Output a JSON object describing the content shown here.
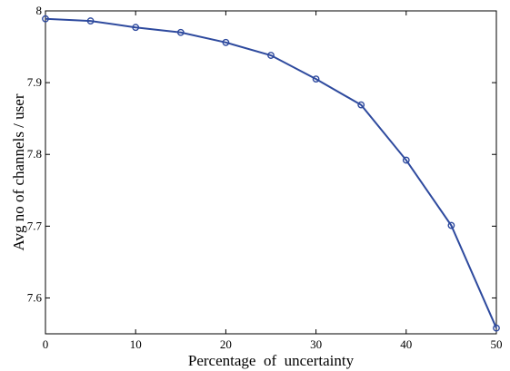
{
  "chart_data": {
    "type": "line",
    "title": "",
    "xlabel": "Percentage  of  uncertainty",
    "ylabel": "Avg no of channels / user",
    "xlim": [
      0,
      50
    ],
    "ylim": [
      7.55,
      8.0
    ],
    "xticks": [
      0,
      10,
      20,
      30,
      40,
      50
    ],
    "xtick_labels": [
      "0",
      "10",
      "20",
      "30",
      "40",
      "50"
    ],
    "yticks": [
      7.6,
      7.7,
      7.8,
      7.9,
      8.0
    ],
    "ytick_labels": [
      "7.6",
      "7.7",
      "7.8",
      "7.9",
      "8"
    ],
    "grid": false,
    "series": [
      {
        "color": "#2e4a9e",
        "marker": "circle",
        "x": [
          0,
          5,
          10,
          15,
          20,
          25,
          30,
          35,
          40,
          45,
          50
        ],
        "y": [
          7.989,
          7.986,
          7.977,
          7.97,
          7.956,
          7.938,
          7.905,
          7.869,
          7.792,
          7.701,
          7.558
        ]
      }
    ]
  }
}
